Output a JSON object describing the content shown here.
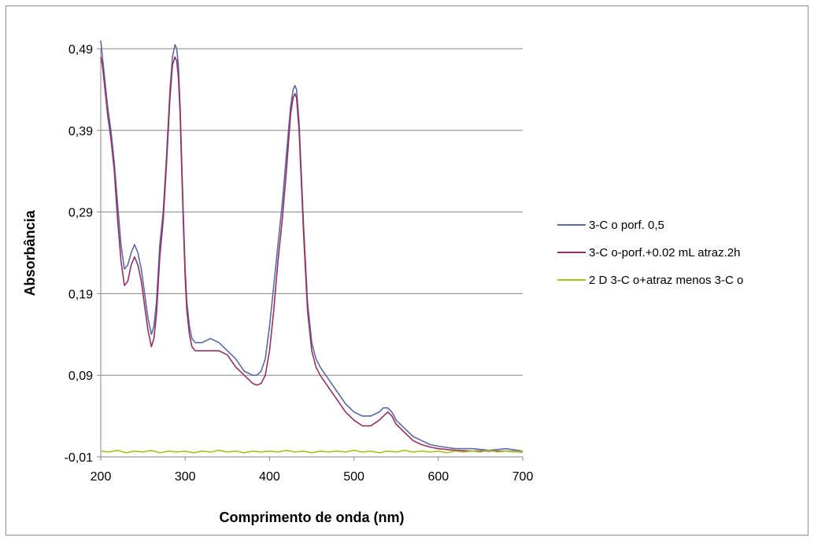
{
  "chart_data": {
    "type": "line",
    "xlabel": "Comprimento de onda (nm)",
    "ylabel": "Absorbância",
    "xlim": [
      200,
      700
    ],
    "ylim": [
      -0.01,
      0.49
    ],
    "xticks": [
      "200",
      "300",
      "400",
      "500",
      "600",
      "700"
    ],
    "yticks": [
      "-0,01",
      "0,09",
      "0,19",
      "0,29",
      "0,39",
      "0,49"
    ],
    "grid": "horizontal",
    "legend_position": "right",
    "series": [
      {
        "name": "3-C o porf. 0,5",
        "color": "#5b6aa0",
        "x": [
          200,
          202,
          205,
          208,
          212,
          216,
          220,
          224,
          228,
          232,
          236,
          240,
          244,
          248,
          252,
          256,
          260,
          263,
          266,
          270,
          274,
          278,
          282,
          285,
          288,
          290,
          292,
          294,
          296,
          298,
          300,
          302,
          305,
          308,
          312,
          316,
          320,
          330,
          340,
          350,
          360,
          370,
          380,
          385,
          390,
          395,
          400,
          405,
          410,
          415,
          420,
          425,
          428,
          430,
          432,
          435,
          438,
          440,
          445,
          450,
          455,
          460,
          470,
          480,
          490,
          500,
          510,
          520,
          530,
          535,
          540,
          545,
          550,
          560,
          570,
          580,
          590,
          600,
          620,
          640,
          660,
          680,
          700
        ],
        "y": [
          0.5,
          0.48,
          0.45,
          0.42,
          0.39,
          0.35,
          0.3,
          0.25,
          0.22,
          0.225,
          0.24,
          0.25,
          0.24,
          0.22,
          0.19,
          0.16,
          0.14,
          0.15,
          0.18,
          0.25,
          0.29,
          0.36,
          0.44,
          0.48,
          0.495,
          0.49,
          0.47,
          0.42,
          0.35,
          0.28,
          0.22,
          0.18,
          0.15,
          0.135,
          0.13,
          0.13,
          0.13,
          0.135,
          0.13,
          0.12,
          0.11,
          0.095,
          0.09,
          0.09,
          0.095,
          0.11,
          0.15,
          0.2,
          0.25,
          0.3,
          0.36,
          0.42,
          0.44,
          0.445,
          0.44,
          0.4,
          0.33,
          0.28,
          0.18,
          0.13,
          0.11,
          0.1,
          0.085,
          0.07,
          0.055,
          0.045,
          0.04,
          0.04,
          0.045,
          0.05,
          0.05,
          0.045,
          0.035,
          0.025,
          0.015,
          0.01,
          0.005,
          0.003,
          0.0,
          0.0,
          -0.002,
          0.0,
          -0.003
        ]
      },
      {
        "name": "3-C o-porf.+0.02 mL atraz.2h",
        "color": "#943062",
        "x": [
          200,
          202,
          205,
          208,
          212,
          216,
          220,
          224,
          228,
          232,
          236,
          240,
          244,
          248,
          252,
          256,
          260,
          263,
          266,
          270,
          274,
          278,
          282,
          285,
          288,
          290,
          292,
          294,
          296,
          298,
          300,
          302,
          305,
          308,
          312,
          316,
          320,
          330,
          340,
          350,
          360,
          370,
          380,
          385,
          390,
          395,
          400,
          405,
          410,
          415,
          420,
          425,
          428,
          430,
          432,
          435,
          438,
          440,
          445,
          450,
          455,
          460,
          470,
          480,
          490,
          500,
          510,
          520,
          530,
          535,
          540,
          545,
          550,
          560,
          570,
          580,
          590,
          600,
          620,
          640,
          660,
          680,
          700
        ],
        "y": [
          0.48,
          0.47,
          0.44,
          0.41,
          0.38,
          0.34,
          0.28,
          0.23,
          0.2,
          0.205,
          0.225,
          0.235,
          0.225,
          0.205,
          0.175,
          0.145,
          0.125,
          0.135,
          0.165,
          0.235,
          0.28,
          0.35,
          0.43,
          0.47,
          0.48,
          0.475,
          0.455,
          0.41,
          0.34,
          0.27,
          0.21,
          0.17,
          0.14,
          0.125,
          0.12,
          0.12,
          0.12,
          0.12,
          0.12,
          0.115,
          0.1,
          0.09,
          0.08,
          0.078,
          0.08,
          0.09,
          0.12,
          0.17,
          0.23,
          0.28,
          0.34,
          0.41,
          0.43,
          0.435,
          0.43,
          0.39,
          0.32,
          0.27,
          0.17,
          0.12,
          0.1,
          0.09,
          0.075,
          0.06,
          0.045,
          0.035,
          0.028,
          0.028,
          0.035,
          0.04,
          0.045,
          0.04,
          0.03,
          0.02,
          0.01,
          0.005,
          0.002,
          0.0,
          -0.002,
          -0.003,
          -0.003,
          -0.003,
          -0.004
        ]
      },
      {
        "name": "2 D 3-C o+atraz menos 3-C o",
        "color": "#a9c31c",
        "x": [
          200,
          210,
          220,
          230,
          240,
          250,
          260,
          270,
          280,
          290,
          300,
          310,
          320,
          330,
          340,
          350,
          360,
          370,
          380,
          390,
          400,
          410,
          420,
          430,
          440,
          450,
          460,
          470,
          480,
          490,
          500,
          510,
          520,
          530,
          540,
          550,
          560,
          570,
          580,
          590,
          600,
          610,
          620,
          630,
          640,
          650,
          660,
          670,
          680,
          690,
          700
        ],
        "y": [
          -0.003,
          -0.004,
          -0.002,
          -0.005,
          -0.003,
          -0.004,
          -0.002,
          -0.005,
          -0.003,
          -0.004,
          -0.003,
          -0.005,
          -0.003,
          -0.004,
          -0.002,
          -0.004,
          -0.003,
          -0.005,
          -0.003,
          -0.004,
          -0.003,
          -0.004,
          -0.002,
          -0.004,
          -0.003,
          -0.005,
          -0.003,
          -0.004,
          -0.003,
          -0.004,
          -0.002,
          -0.004,
          -0.003,
          -0.005,
          -0.003,
          -0.004,
          -0.002,
          -0.004,
          -0.003,
          -0.004,
          -0.003,
          -0.005,
          -0.003,
          -0.004,
          -0.003,
          -0.004,
          -0.002,
          -0.004,
          -0.003,
          -0.004,
          -0.003
        ]
      }
    ]
  }
}
